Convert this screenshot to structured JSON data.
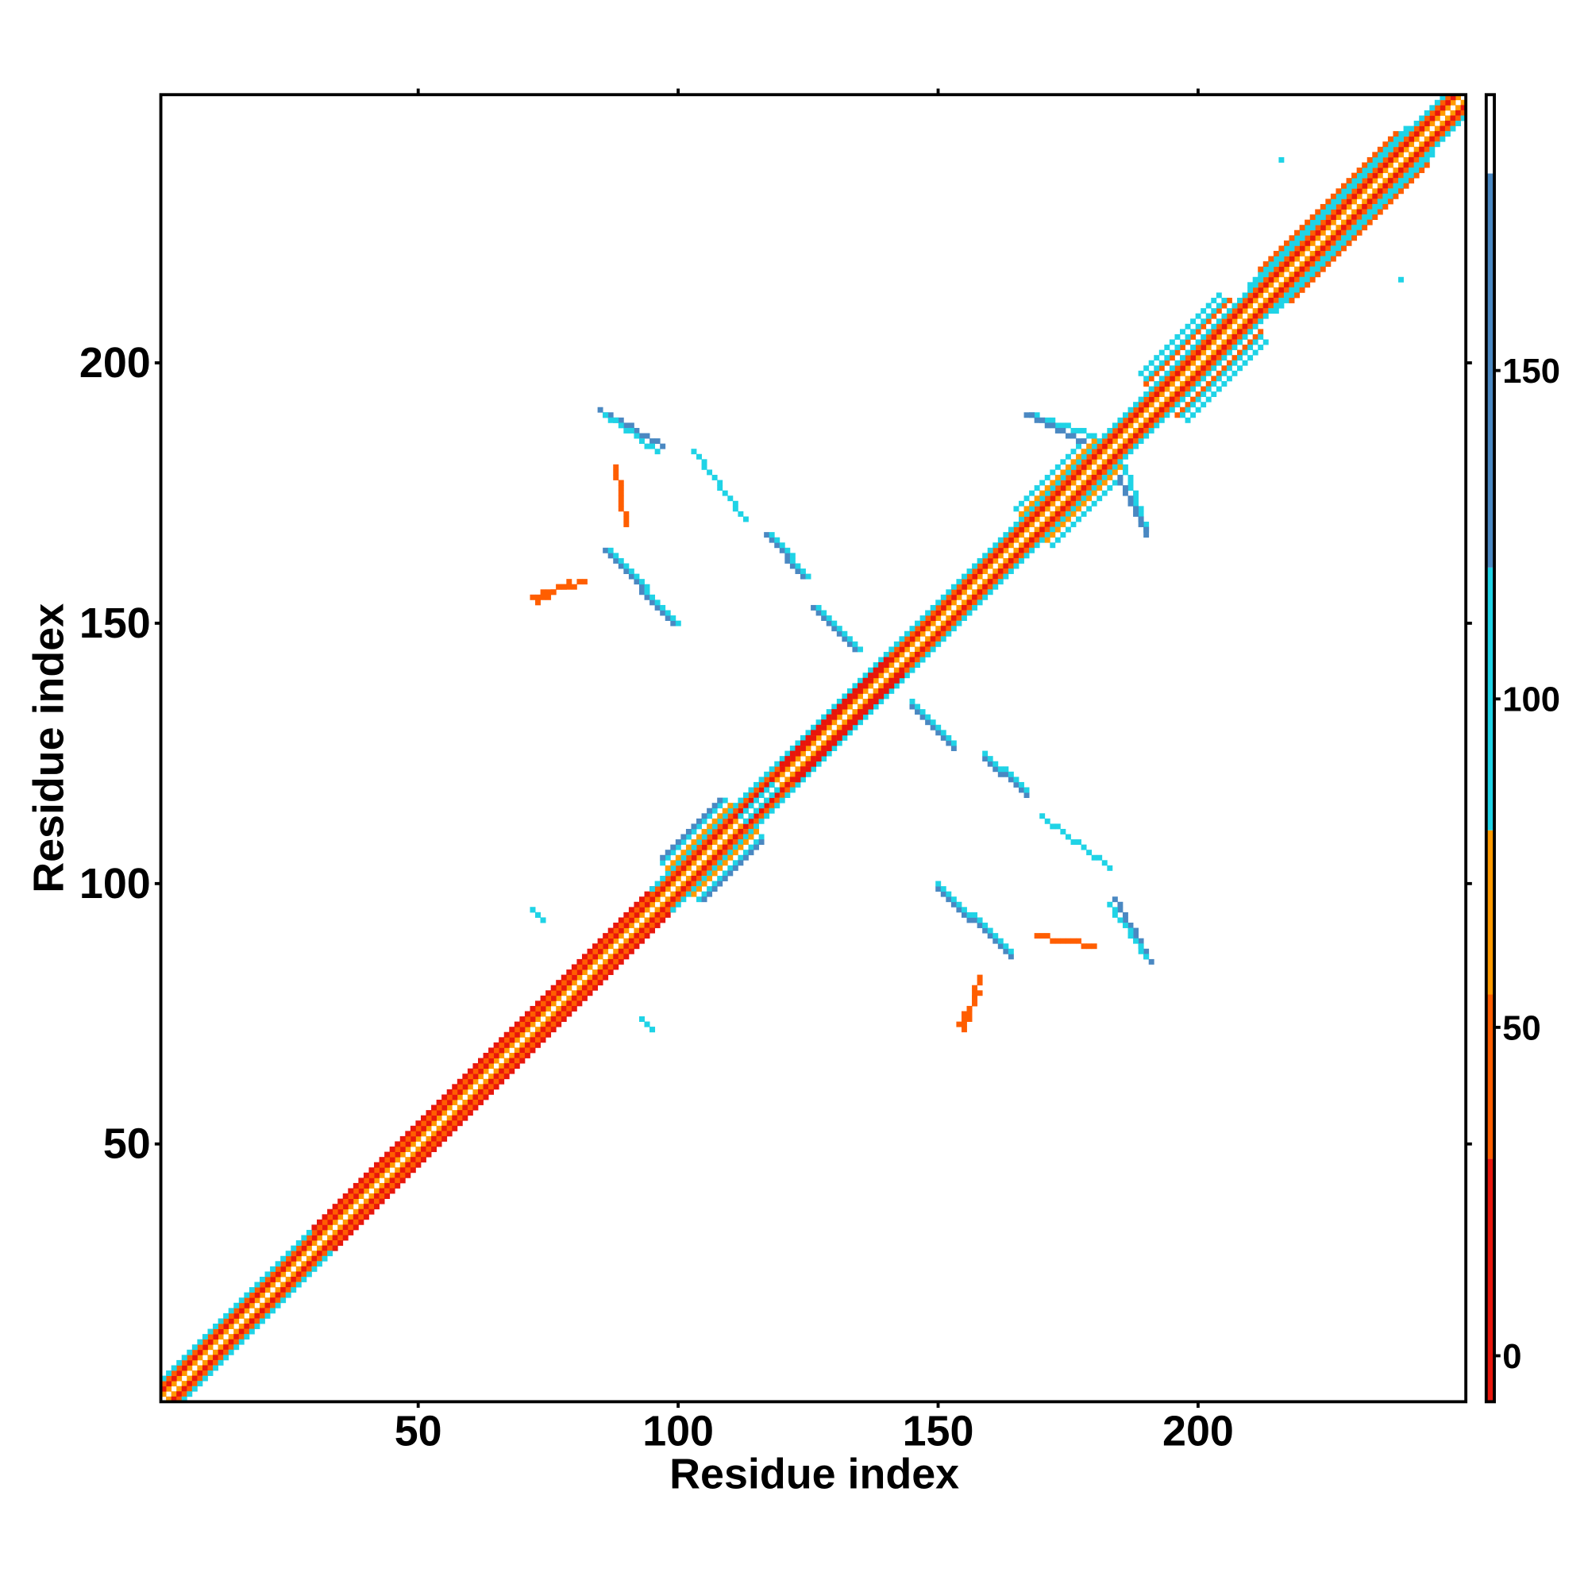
{
  "chart_data": {
    "type": "heatmap",
    "xlabel": "Residue index",
    "ylabel": "Residue index",
    "xlim": [
      0.5,
      251.5
    ],
    "ylim": [
      0.5,
      251.5
    ],
    "xticks": [
      50,
      100,
      150,
      200
    ],
    "yticks": [
      50,
      100,
      150,
      200
    ],
    "symmetric": true,
    "strips": [
      {
        "x": [
          1,
          250
        ],
        "y": [
          2,
          251
        ],
        "value": 60
      },
      {
        "x": [
          1,
          249
        ],
        "y": [
          3,
          251
        ],
        "value": 15
      },
      {
        "x": [
          1,
          248
        ],
        "y": [
          4,
          251
        ],
        "value": 45
      },
      {
        "x": [
          1,
          30
        ],
        "y": [
          5,
          34
        ],
        "value": 100
      },
      {
        "x": [
          30,
          95
        ],
        "y": [
          34,
          99
        ],
        "value": 20
      },
      {
        "x": [
          95,
          247
        ],
        "y": [
          99,
          251
        ],
        "value": 100
      },
      {
        "x": [
          98,
          110
        ],
        "y": [
          103,
          115
        ],
        "value": 70
      },
      {
        "x": [
          97,
          109
        ],
        "y": [
          104,
          116
        ],
        "value": 110
      },
      {
        "x": [
          97,
          108
        ],
        "y": [
          105,
          116
        ],
        "value": 125
      },
      {
        "x": [
          112,
          118
        ],
        "y": [
          113,
          119
        ],
        "value": 95
      },
      {
        "x": [
          166,
          180
        ],
        "y": [
          171,
          185
        ],
        "value": 70
      },
      {
        "x": [
          165,
          178
        ],
        "y": [
          172,
          185
        ],
        "value": 105
      },
      {
        "x": [
          190,
          206
        ],
        "y": [
          196,
          212
        ],
        "value": 40
      },
      {
        "x": [
          190,
          205
        ],
        "y": [
          197,
          212
        ],
        "value": 110
      },
      {
        "x": [
          189,
          204
        ],
        "y": [
          198,
          213
        ],
        "value": 100
      },
      {
        "x": [
          210,
          240
        ],
        "y": [
          215,
          245
        ],
        "value": 110
      },
      {
        "x": [
          212,
          238
        ],
        "y": [
          218,
          244
        ],
        "value": 45
      },
      {
        "x": [
          120,
          140
        ],
        "y": [
          123,
          143
        ],
        "value": 10
      },
      {
        "x": [
          85,
          97
        ],
        "y": [
          191,
          184
        ],
        "value": 130
      },
      {
        "x": [
          86,
          96
        ],
        "y": [
          190,
          183
        ],
        "value": 105
      },
      {
        "x": [
          86,
          99
        ],
        "y": [
          164,
          150
        ],
        "value": 130
      },
      {
        "x": [
          87,
          100
        ],
        "y": [
          164,
          150
        ],
        "value": 100
      },
      {
        "x": [
          117,
          124
        ],
        "y": [
          167,
          159
        ],
        "value": 135
      },
      {
        "x": [
          118,
          125
        ],
        "y": [
          167,
          159
        ],
        "value": 110
      },
      {
        "x": [
          126,
          134
        ],
        "y": [
          153,
          145
        ],
        "value": 130
      },
      {
        "x": [
          127,
          135
        ],
        "y": [
          153,
          145
        ],
        "value": 105
      },
      {
        "x": [
          72,
          82
        ],
        "y": [
          155,
          158
        ],
        "value": 50
      },
      {
        "x": [
          103,
          113
        ],
        "y": [
          183,
          170
        ],
        "value": 95
      },
      {
        "x": [
          88,
          90
        ],
        "y": [
          180,
          169
        ],
        "value": 45
      },
      {
        "x": [
          216,
          216
        ],
        "y": [
          239,
          239
        ],
        "value": 100
      },
      {
        "x": [
          93,
          95
        ],
        "y": [
          74,
          72
        ],
        "value": 110
      },
      {
        "x": [
          72,
          74
        ],
        "y": [
          95,
          93
        ],
        "value": 105
      },
      {
        "x": [
          154,
          158
        ],
        "y": [
          73,
          79
        ],
        "value": 45
      },
      {
        "x": [
          168,
          180
        ],
        "y": [
          190,
          186
        ],
        "value": 100
      },
      {
        "x": [
          185,
          190
        ],
        "y": [
          178,
          167
        ],
        "value": 120
      }
    ],
    "colorbar": {
      "zlim": [
        -7,
        192
      ],
      "zticks": [
        0,
        50,
        100,
        150
      ],
      "bands": [
        {
          "from": -7,
          "to": 30,
          "color": "#e8160c"
        },
        {
          "from": 30,
          "to": 55,
          "color": "#ff5e00"
        },
        {
          "from": 55,
          "to": 80,
          "color": "#ff9a00"
        },
        {
          "from": 80,
          "to": 120,
          "color": "#1fd3e6"
        },
        {
          "from": 120,
          "to": 180,
          "color": "#4a88c2"
        },
        {
          "from": 180,
          "to": 192,
          "color": "#ffffff"
        }
      ]
    }
  }
}
